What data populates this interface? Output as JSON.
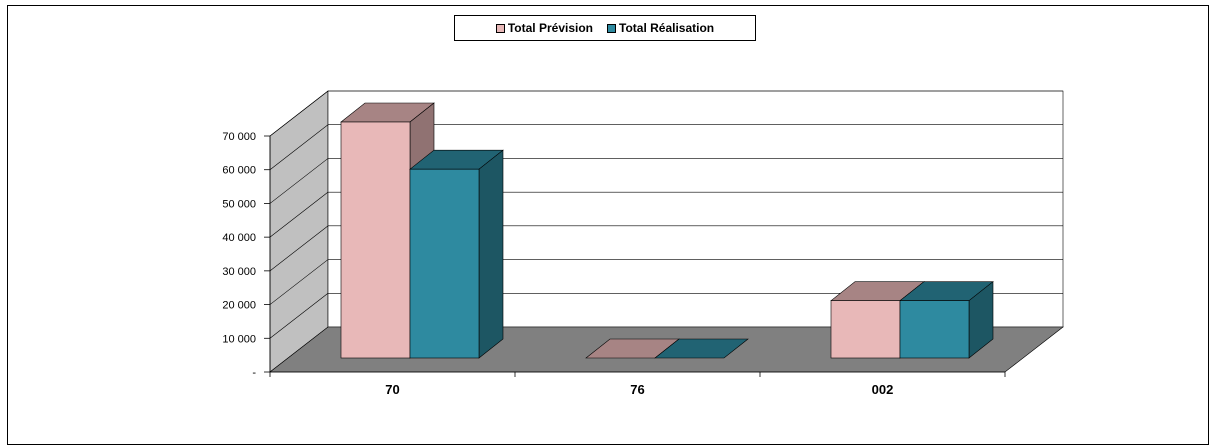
{
  "chart_data": {
    "type": "bar",
    "style": "3d-clustered-column",
    "categories": [
      "70",
      "76",
      "002"
    ],
    "series": [
      {
        "name": "Total Prévision",
        "values": [
          70000,
          0,
          17000
        ],
        "color": "#e8b8b8"
      },
      {
        "name": "Total Réalisation",
        "values": [
          56000,
          0,
          17000
        ],
        "color": "#2e8aa0"
      }
    ],
    "y_ticks": [
      {
        "value": 0,
        "label": "-"
      },
      {
        "value": 10000,
        "label": "10 000"
      },
      {
        "value": 20000,
        "label": "20 000"
      },
      {
        "value": 30000,
        "label": "30 000"
      },
      {
        "value": 40000,
        "label": "40 000"
      },
      {
        "value": 50000,
        "label": "50 000"
      },
      {
        "value": 60000,
        "label": "60 000"
      },
      {
        "value": 70000,
        "label": "70 000"
      }
    ],
    "ylim": [
      0,
      70000
    ],
    "title": "",
    "xlabel": "",
    "ylabel": "",
    "grid": true,
    "legend_position": "top-center",
    "wall_color": "#c0c0c0",
    "floor_color": "#808080"
  }
}
